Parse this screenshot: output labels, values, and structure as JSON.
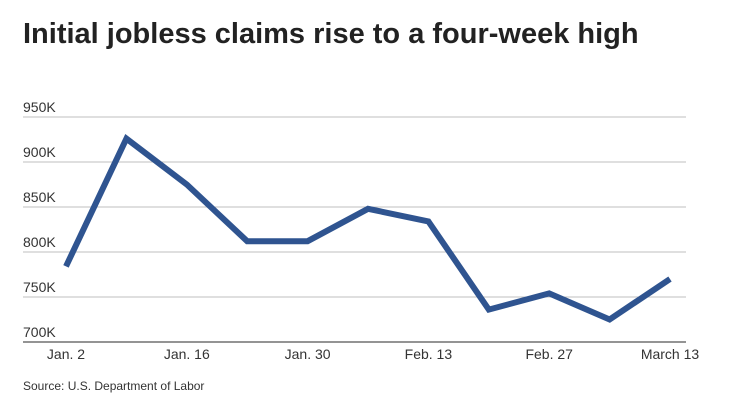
{
  "title": "Initial jobless claims rise to a four-week high",
  "source": "Source: U.S. Department of Labor",
  "colors": {
    "line": "#2f5490",
    "grid": "#bfbfbf",
    "axis": "#555555"
  },
  "chart_data": {
    "type": "line",
    "title": "Initial jobless claims rise to a four-week high",
    "xlabel": "",
    "ylabel": "",
    "x": [
      "Jan. 2",
      "Jan. 9",
      "Jan. 16",
      "Jan. 23",
      "Jan. 30",
      "Feb. 6",
      "Feb. 13",
      "Feb. 20",
      "Feb. 27",
      "March 6",
      "March 13"
    ],
    "x_tick_labels": [
      "Jan. 2",
      "Jan. 16",
      "Jan. 30",
      "Feb. 13",
      "Feb. 27",
      "March 13"
    ],
    "y_tick_labels": [
      "950K",
      "900K",
      "850K",
      "800K",
      "750K",
      "700K"
    ],
    "y_ticks": [
      950000,
      900000,
      850000,
      800000,
      750000,
      700000
    ],
    "ylim": [
      700000,
      950000
    ],
    "grid": true,
    "legend": "none",
    "series": [
      {
        "values": [
          784000,
          926000,
          875000,
          812000,
          812000,
          848000,
          834000,
          736000,
          754000,
          725000,
          770000
        ]
      }
    ]
  }
}
